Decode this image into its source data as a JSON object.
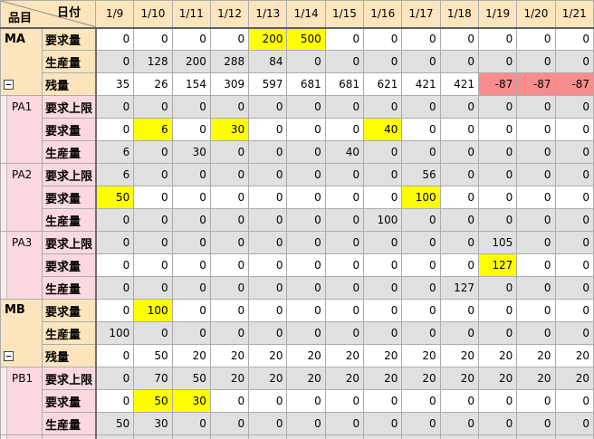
{
  "header": {
    "date_label": "日付",
    "item_label": "品目",
    "dates": [
      "1/9",
      "1/10",
      "1/11",
      "1/12",
      "1/13",
      "1/14",
      "1/15",
      "1/16",
      "1/17",
      "1/18",
      "1/19",
      "1/20",
      "1/21"
    ]
  },
  "colors": {
    "header_bg": "#FCE4BC",
    "pink": "#FBD9DE",
    "pink_indent": "#FCEAED",
    "yellow": "#FFFF00",
    "red": "#F98D8D",
    "gray": "#E0E0E0",
    "white": "#FFFFFF",
    "grid": "#ACACAC"
  },
  "blocks": [
    {
      "item": "MA",
      "level": 0,
      "collapsible": true,
      "rows": [
        {
          "label": "要求量",
          "shade": "white",
          "values": [
            0,
            0,
            0,
            0,
            200,
            500,
            0,
            0,
            0,
            0,
            0,
            0,
            0
          ],
          "yellow": [
            4,
            5
          ]
        },
        {
          "label": "生産量",
          "shade": "gray",
          "values": [
            0,
            128,
            200,
            288,
            84,
            0,
            0,
            0,
            0,
            0,
            0,
            0,
            0
          ]
        },
        {
          "label": "残量",
          "shade": "white",
          "values": [
            35,
            26,
            154,
            309,
            597,
            681,
            681,
            621,
            421,
            421,
            -87,
            -87,
            -87
          ],
          "red": [
            10,
            11,
            12
          ]
        }
      ]
    },
    {
      "item": "PA1",
      "level": 1,
      "collapsible": false,
      "rows": [
        {
          "label": "要求上限",
          "shade": "gray",
          "values": [
            0,
            0,
            0,
            0,
            0,
            0,
            0,
            0,
            0,
            0,
            0,
            0,
            0
          ]
        },
        {
          "label": "要求量",
          "shade": "white",
          "values": [
            0,
            6,
            0,
            30,
            0,
            0,
            0,
            40,
            0,
            0,
            0,
            0,
            0
          ],
          "yellow": [
            1,
            3,
            7
          ]
        },
        {
          "label": "生産量",
          "shade": "gray",
          "values": [
            6,
            0,
            30,
            0,
            0,
            0,
            40,
            0,
            0,
            0,
            0,
            0,
            0
          ]
        }
      ]
    },
    {
      "item": "PA2",
      "level": 1,
      "collapsible": false,
      "rows": [
        {
          "label": "要求上限",
          "shade": "gray",
          "values": [
            6,
            0,
            0,
            0,
            0,
            0,
            0,
            0,
            56,
            0,
            0,
            0,
            0
          ]
        },
        {
          "label": "要求量",
          "shade": "white",
          "values": [
            50,
            0,
            0,
            0,
            0,
            0,
            0,
            0,
            100,
            0,
            0,
            0,
            0
          ],
          "yellow": [
            0,
            8
          ]
        },
        {
          "label": "生産量",
          "shade": "gray",
          "values": [
            0,
            0,
            0,
            0,
            0,
            0,
            0,
            100,
            0,
            0,
            0,
            0,
            0
          ]
        }
      ]
    },
    {
      "item": "PA3",
      "level": 1,
      "collapsible": false,
      "rows": [
        {
          "label": "要求上限",
          "shade": "gray",
          "values": [
            0,
            0,
            0,
            0,
            0,
            0,
            0,
            0,
            0,
            0,
            105,
            0,
            0
          ]
        },
        {
          "label": "要求量",
          "shade": "white",
          "values": [
            0,
            0,
            0,
            0,
            0,
            0,
            0,
            0,
            0,
            0,
            127,
            0,
            0
          ],
          "yellow": [
            10
          ]
        },
        {
          "label": "生産量",
          "shade": "gray",
          "values": [
            0,
            0,
            0,
            0,
            0,
            0,
            0,
            0,
            0,
            127,
            0,
            0,
            0
          ]
        }
      ]
    },
    {
      "item": "MB",
      "level": 0,
      "collapsible": true,
      "rows": [
        {
          "label": "要求量",
          "shade": "white",
          "values": [
            0,
            100,
            0,
            0,
            0,
            0,
            0,
            0,
            0,
            0,
            0,
            0,
            0
          ],
          "yellow": [
            1
          ]
        },
        {
          "label": "生産量",
          "shade": "gray",
          "values": [
            100,
            0,
            0,
            0,
            0,
            0,
            0,
            0,
            0,
            0,
            0,
            0,
            0
          ]
        },
        {
          "label": "残量",
          "shade": "white",
          "values": [
            0,
            50,
            20,
            20,
            20,
            20,
            20,
            20,
            20,
            20,
            20,
            20,
            20
          ]
        }
      ]
    },
    {
      "item": "PB1",
      "level": 1,
      "collapsible": false,
      "rows": [
        {
          "label": "要求上限",
          "shade": "gray",
          "values": [
            0,
            70,
            50,
            20,
            20,
            20,
            20,
            20,
            20,
            20,
            20,
            20,
            20
          ]
        },
        {
          "label": "要求量",
          "shade": "white",
          "values": [
            0,
            50,
            30,
            0,
            0,
            0,
            0,
            0,
            0,
            0,
            0,
            0,
            0
          ],
          "yellow": [
            1,
            2
          ]
        },
        {
          "label": "生産量",
          "shade": "gray",
          "values": [
            50,
            30,
            0,
            0,
            0,
            0,
            0,
            0,
            0,
            0,
            0,
            0,
            0
          ]
        }
      ]
    },
    {
      "item": "",
      "level": 1,
      "collapsible": false,
      "partial": true,
      "rows": [
        {
          "label": "",
          "shade": "gray",
          "values": [
            "",
            "",
            "",
            "",
            "",
            "",
            "",
            "",
            "",
            "",
            "",
            "",
            ""
          ]
        }
      ]
    }
  ]
}
